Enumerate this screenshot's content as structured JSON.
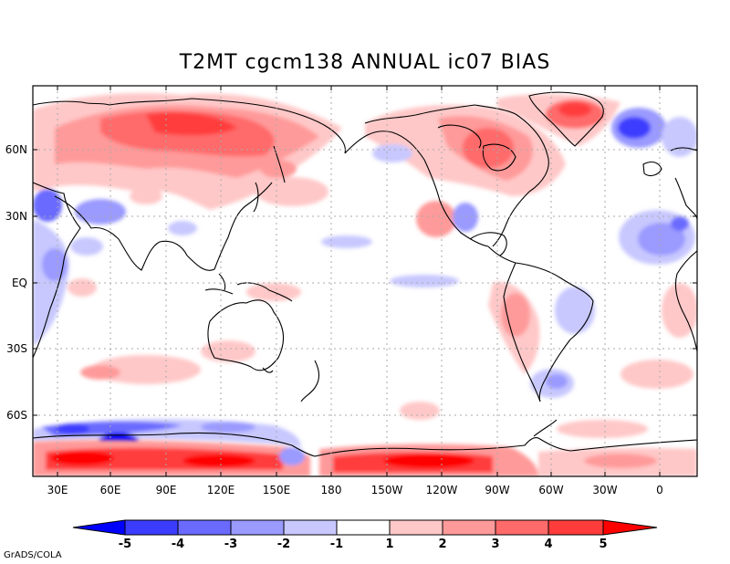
{
  "title": "T2MT cgcm138 ANNUAL ic07 BIAS",
  "y_axis_labels": [
    "60N",
    "30N",
    "EQ",
    "30S",
    "60S"
  ],
  "x_axis_labels": [
    "30E",
    "60E",
    "90E",
    "120E",
    "150E",
    "180",
    "150W",
    "120W",
    "90W",
    "60W",
    "30W",
    "0"
  ],
  "colorbar": {
    "labels": [
      "-5",
      "-4",
      "-3",
      "-2",
      "-1",
      "1",
      "2",
      "3",
      "4",
      "5"
    ],
    "colors": [
      "#0000ff",
      "#3c3cff",
      "#6a6aff",
      "#9a9aff",
      "#c8c8ff",
      "#ffffff",
      "#ffc8c8",
      "#ff9a9a",
      "#ff6a6a",
      "#ff3c3c",
      "#ff0000"
    ]
  },
  "credit": "GrADS/COLA"
}
